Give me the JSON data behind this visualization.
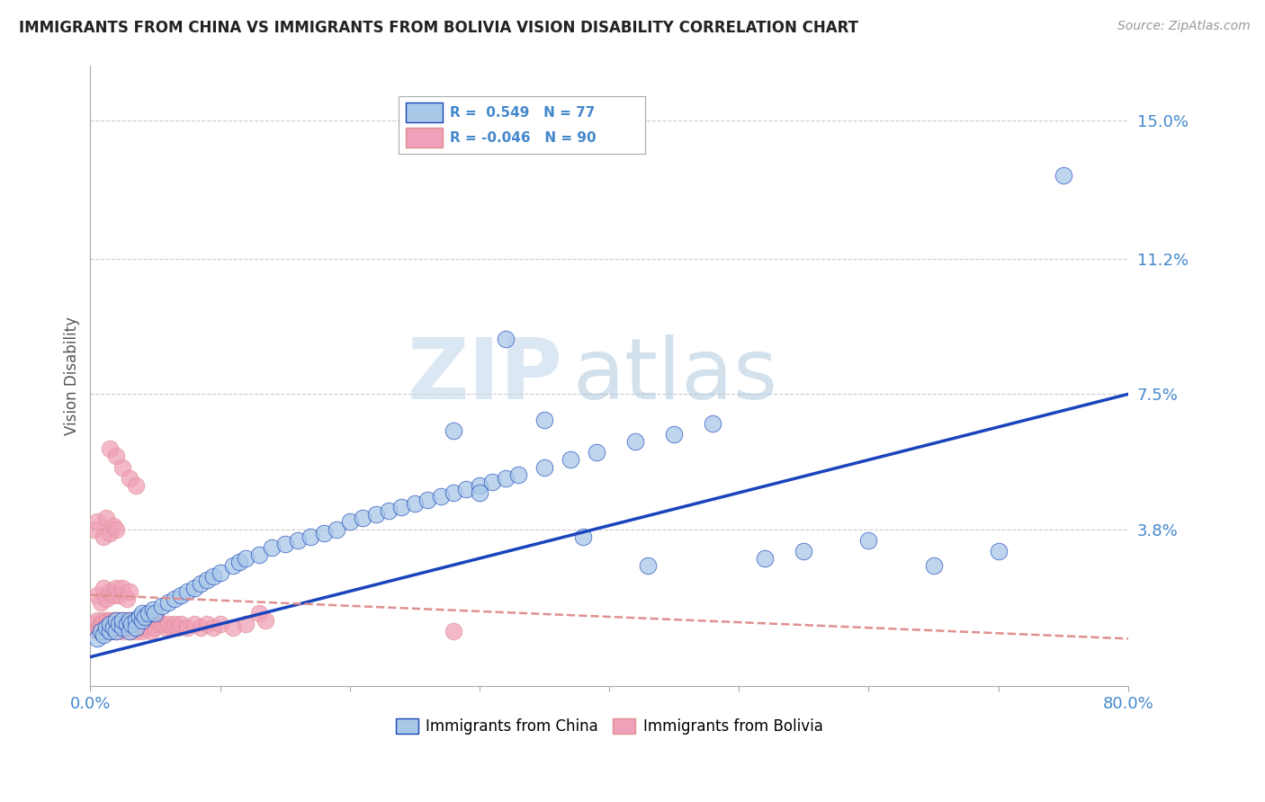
{
  "title": "IMMIGRANTS FROM CHINA VS IMMIGRANTS FROM BOLIVIA VISION DISABILITY CORRELATION CHART",
  "source_text": "Source: ZipAtlas.com",
  "ylabel": "Vision Disability",
  "xlabel": "",
  "watermark_zip": "ZIP",
  "watermark_atlas": "atlas",
  "legend_china": "Immigrants from China",
  "legend_bolivia": "Immigrants from Bolivia",
  "R_china": 0.549,
  "N_china": 77,
  "R_bolivia": -0.046,
  "N_bolivia": 90,
  "xlim": [
    0.0,
    0.8
  ],
  "ylim": [
    -0.005,
    0.165
  ],
  "yticks": [
    0.038,
    0.075,
    0.112,
    0.15
  ],
  "ytick_labels": [
    "3.8%",
    "7.5%",
    "11.2%",
    "15.0%"
  ],
  "xticks": [
    0.0,
    0.1,
    0.2,
    0.3,
    0.4,
    0.5,
    0.6,
    0.7,
    0.8
  ],
  "xtick_labels": [
    "0.0%",
    "",
    "",
    "",
    "",
    "",
    "",
    "",
    "80.0%"
  ],
  "color_china": "#a8c8e8",
  "color_bolivia": "#f0a0b8",
  "trendline_china_color": "#1a44bb",
  "trendline_bolivia_color": "#e09090",
  "background_color": "#ffffff",
  "grid_color": "#cccccc",
  "axis_label_color": "#4488cc",
  "title_color": "#222222",
  "china_x": [
    0.005,
    0.008,
    0.01,
    0.012,
    0.015,
    0.015,
    0.018,
    0.02,
    0.02,
    0.022,
    0.025,
    0.025,
    0.028,
    0.03,
    0.03,
    0.032,
    0.035,
    0.035,
    0.038,
    0.04,
    0.04,
    0.042,
    0.045,
    0.048,
    0.05,
    0.055,
    0.06,
    0.065,
    0.07,
    0.075,
    0.08,
    0.085,
    0.09,
    0.095,
    0.1,
    0.11,
    0.115,
    0.12,
    0.13,
    0.14,
    0.15,
    0.16,
    0.17,
    0.18,
    0.19,
    0.2,
    0.21,
    0.22,
    0.23,
    0.24,
    0.25,
    0.26,
    0.27,
    0.28,
    0.29,
    0.3,
    0.31,
    0.32,
    0.33,
    0.35,
    0.37,
    0.39,
    0.42,
    0.45,
    0.48,
    0.52,
    0.55,
    0.6,
    0.65,
    0.7,
    0.35,
    0.3,
    0.28,
    0.38,
    0.43,
    0.75,
    0.32
  ],
  "china_y": [
    0.008,
    0.01,
    0.009,
    0.011,
    0.01,
    0.012,
    0.011,
    0.013,
    0.01,
    0.012,
    0.011,
    0.013,
    0.012,
    0.013,
    0.01,
    0.012,
    0.013,
    0.011,
    0.014,
    0.013,
    0.015,
    0.014,
    0.015,
    0.016,
    0.015,
    0.017,
    0.018,
    0.019,
    0.02,
    0.021,
    0.022,
    0.023,
    0.024,
    0.025,
    0.026,
    0.028,
    0.029,
    0.03,
    0.031,
    0.033,
    0.034,
    0.035,
    0.036,
    0.037,
    0.038,
    0.04,
    0.041,
    0.042,
    0.043,
    0.044,
    0.045,
    0.046,
    0.047,
    0.048,
    0.049,
    0.05,
    0.051,
    0.052,
    0.053,
    0.055,
    0.057,
    0.059,
    0.062,
    0.064,
    0.067,
    0.03,
    0.032,
    0.035,
    0.028,
    0.032,
    0.068,
    0.048,
    0.065,
    0.036,
    0.028,
    0.135,
    0.09
  ],
  "bolivia_x": [
    0.003,
    0.005,
    0.005,
    0.007,
    0.008,
    0.008,
    0.01,
    0.01,
    0.012,
    0.012,
    0.013,
    0.015,
    0.015,
    0.015,
    0.017,
    0.018,
    0.018,
    0.02,
    0.02,
    0.02,
    0.022,
    0.022,
    0.023,
    0.025,
    0.025,
    0.027,
    0.028,
    0.028,
    0.03,
    0.03,
    0.03,
    0.032,
    0.033,
    0.035,
    0.035,
    0.037,
    0.038,
    0.038,
    0.04,
    0.04,
    0.042,
    0.043,
    0.045,
    0.045,
    0.047,
    0.048,
    0.05,
    0.05,
    0.052,
    0.055,
    0.058,
    0.06,
    0.063,
    0.065,
    0.068,
    0.07,
    0.075,
    0.08,
    0.085,
    0.09,
    0.095,
    0.1,
    0.11,
    0.12,
    0.005,
    0.008,
    0.01,
    0.012,
    0.015,
    0.018,
    0.02,
    0.022,
    0.025,
    0.028,
    0.03,
    0.003,
    0.005,
    0.01,
    0.012,
    0.015,
    0.018,
    0.02,
    0.13,
    0.135,
    0.28,
    0.015,
    0.02,
    0.025,
    0.03,
    0.035
  ],
  "bolivia_y": [
    0.012,
    0.01,
    0.013,
    0.011,
    0.01,
    0.012,
    0.011,
    0.013,
    0.012,
    0.01,
    0.013,
    0.011,
    0.013,
    0.01,
    0.012,
    0.011,
    0.013,
    0.012,
    0.01,
    0.013,
    0.012,
    0.011,
    0.013,
    0.012,
    0.01,
    0.013,
    0.012,
    0.011,
    0.013,
    0.01,
    0.012,
    0.011,
    0.013,
    0.012,
    0.01,
    0.013,
    0.012,
    0.011,
    0.013,
    0.01,
    0.012,
    0.011,
    0.013,
    0.012,
    0.01,
    0.013,
    0.012,
    0.011,
    0.013,
    0.012,
    0.011,
    0.012,
    0.011,
    0.012,
    0.011,
    0.012,
    0.011,
    0.012,
    0.011,
    0.012,
    0.011,
    0.012,
    0.011,
    0.012,
    0.02,
    0.018,
    0.022,
    0.019,
    0.021,
    0.02,
    0.022,
    0.02,
    0.022,
    0.019,
    0.021,
    0.038,
    0.04,
    0.036,
    0.041,
    0.037,
    0.039,
    0.038,
    0.015,
    0.013,
    0.01,
    0.06,
    0.058,
    0.055,
    0.052,
    0.05
  ],
  "trendline_china_x0": 0.0,
  "trendline_china_y0": 0.003,
  "trendline_china_x1": 0.8,
  "trendline_china_y1": 0.075,
  "trendline_bolivia_x0": 0.0,
  "trendline_bolivia_y0": 0.02,
  "trendline_bolivia_x1": 0.8,
  "trendline_bolivia_y1": 0.008
}
